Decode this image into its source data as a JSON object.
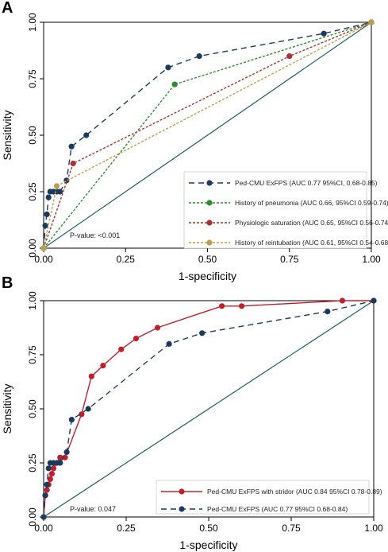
{
  "chart_data": [
    {
      "type": "line",
      "panel_label": "A",
      "xlabel": "1-specificity",
      "ylabel": "Sensitivity",
      "xlim": [
        0,
        1
      ],
      "ylim": [
        0,
        1
      ],
      "x_ticks": [
        "0.00",
        "0.25",
        "0.50",
        "0.75",
        "1.00"
      ],
      "y_ticks": [
        "0.00",
        "0.25",
        "0.50",
        "0.75",
        "1.00"
      ],
      "grid": false,
      "legend_position": "bottom-right",
      "reference_line": {
        "from": [
          0,
          0
        ],
        "to": [
          1,
          1
        ],
        "color": "#1f5f5f"
      },
      "annotation": "P-value: <0.001",
      "series": [
        {
          "name": "Ped-CMU ExFPS (AUC 0.77 95%CI, 0.68-0.85)",
          "color": "#1c3a5e",
          "dash": "7,5",
          "x": [
            0.0,
            0.005,
            0.01,
            0.015,
            0.02,
            0.03,
            0.04,
            0.05,
            0.07,
            0.085,
            0.13,
            0.38,
            0.475,
            0.855,
            1.0
          ],
          "y": [
            0.0,
            0.1,
            0.15,
            0.225,
            0.25,
            0.25,
            0.25,
            0.25,
            0.3,
            0.45,
            0.5,
            0.8,
            0.85,
            0.95,
            1.0
          ]
        },
        {
          "name": "History of pneumonia (AUC 0.66, 95%CI 0.59-0.74)",
          "color": "#2e8b2e",
          "dash": "3,2",
          "x": [
            0.0,
            0.4,
            1.0
          ],
          "y": [
            0.0,
            0.725,
            1.0
          ]
        },
        {
          "name": "Physiologic saturation (AUC 0.65, 95%CI 0.56-0.74)",
          "color": "#a83232",
          "dash": "3,2",
          "x": [
            0.0,
            0.09,
            0.75,
            1.0
          ],
          "y": [
            0.0,
            0.375,
            0.85,
            1.0
          ]
        },
        {
          "name": "History of reintubation (AUC 0.61, 95%CI 0.54-0.68)",
          "color": "#b8a050",
          "dash": "3,2",
          "x": [
            0.0,
            0.04,
            1.0
          ],
          "y": [
            0.0,
            0.275,
            1.0
          ]
        }
      ]
    },
    {
      "type": "line",
      "panel_label": "B",
      "xlabel": "1-specificity",
      "ylabel": "Sensitivity",
      "xlim": [
        0,
        1
      ],
      "ylim": [
        0,
        1
      ],
      "x_ticks": [
        "0.00",
        "0.25",
        "0.50",
        "0.75",
        "1.00"
      ],
      "y_ticks": [
        "0.00",
        "0.25",
        "0.50",
        "0.75",
        "1.00"
      ],
      "grid": false,
      "legend_position": "bottom-right",
      "reference_line": {
        "from": [
          0,
          0
        ],
        "to": [
          1,
          1
        ],
        "color": "#1f5f5f"
      },
      "annotation": "P-value: 0.047",
      "series": [
        {
          "name": "Ped-CMU ExFPS with stridor (AUC 0.84 95%CI 0.78-0.89)",
          "color": "#c0202c",
          "dash": "",
          "x": [
            0.0,
            0.005,
            0.01,
            0.015,
            0.02,
            0.025,
            0.03,
            0.04,
            0.05,
            0.065,
            0.115,
            0.145,
            0.18,
            0.235,
            0.28,
            0.345,
            0.54,
            0.6,
            0.905,
            1.0
          ],
          "y": [
            0.0,
            0.1,
            0.125,
            0.15,
            0.175,
            0.2,
            0.225,
            0.25,
            0.275,
            0.275,
            0.475,
            0.65,
            0.7,
            0.775,
            0.825,
            0.875,
            0.975,
            0.975,
            1.0,
            1.0
          ]
        },
        {
          "name": "Ped-CMU ExFPS (AUC 0.77 95%CI 0.68-0.84)",
          "color": "#1c3a5e",
          "dash": "7,5",
          "x": [
            0.0,
            0.005,
            0.01,
            0.015,
            0.02,
            0.03,
            0.04,
            0.05,
            0.07,
            0.085,
            0.135,
            0.38,
            0.48,
            0.86,
            1.0
          ],
          "y": [
            0.0,
            0.1,
            0.15,
            0.225,
            0.25,
            0.25,
            0.25,
            0.25,
            0.3,
            0.45,
            0.5,
            0.8,
            0.85,
            0.95,
            1.0
          ]
        }
      ]
    }
  ]
}
